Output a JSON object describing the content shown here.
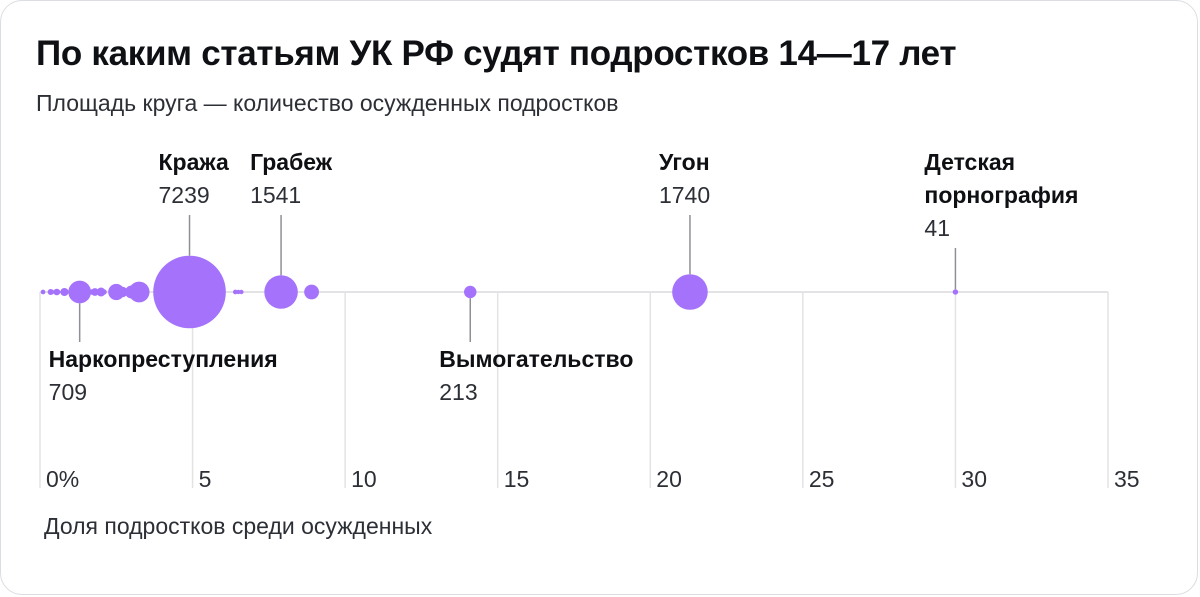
{
  "title": "По каким статьям УК РФ судят подростков 14—17 лет",
  "subtitle": "Площадь круга — количество осужденных подростков",
  "chart_data": {
    "type": "scatter",
    "title": "По каким статьям УК РФ судят подростков 14—17 лет",
    "subtitle": "Площадь круга — количество осужденных подростков",
    "xlabel": "Доля подростков среди осужденных",
    "ylabel": "",
    "xlim": [
      0,
      35
    ],
    "x_ticks": [
      "0%",
      "5",
      "10",
      "15",
      "20",
      "25",
      "30",
      "35"
    ],
    "x_tick_values": [
      0,
      5,
      10,
      15,
      20,
      25,
      30,
      35
    ],
    "grid": true,
    "color": "#a472fb",
    "labeled": [
      {
        "name": "Кража",
        "value": "7239",
        "x": 4.9,
        "count": 7239,
        "label": "above"
      },
      {
        "name": "Грабеж",
        "value": "1541",
        "x": 7.9,
        "count": 1541,
        "label": "above"
      },
      {
        "name": "Угон",
        "value": "1740",
        "x": 21.3,
        "count": 1740,
        "label": "above"
      },
      {
        "name": "Детская порнография",
        "name_lines": [
          "Детская",
          "порнография"
        ],
        "value": "41",
        "x": 30.0,
        "count": 41,
        "label": "above"
      },
      {
        "name": "Наркопреступления",
        "value": "709",
        "x": 1.3,
        "count": 709,
        "label": "below"
      },
      {
        "name": "Вымогательство",
        "value": "213",
        "x": 14.1,
        "count": 213,
        "label": "below"
      }
    ],
    "unlabeled": [
      {
        "x": 0.1,
        "count": 30
      },
      {
        "x": 0.35,
        "count": 50
      },
      {
        "x": 0.4,
        "count": 20
      },
      {
        "x": 0.55,
        "count": 60
      },
      {
        "x": 0.6,
        "count": 25
      },
      {
        "x": 0.8,
        "count": 90
      },
      {
        "x": 0.8,
        "count": 70
      },
      {
        "x": 1.0,
        "count": 35
      },
      {
        "x": 1.4,
        "count": 150
      },
      {
        "x": 1.7,
        "count": 40
      },
      {
        "x": 1.8,
        "count": 80
      },
      {
        "x": 2.0,
        "count": 110
      },
      {
        "x": 2.1,
        "count": 40
      },
      {
        "x": 2.5,
        "count": 360
      },
      {
        "x": 2.7,
        "count": 150
      },
      {
        "x": 3.0,
        "count": 230
      },
      {
        "x": 3.2,
        "count": 110
      },
      {
        "x": 3.25,
        "count": 590
      },
      {
        "x": 6.4,
        "count": 30
      },
      {
        "x": 6.5,
        "count": 18
      },
      {
        "x": 6.6,
        "count": 15
      },
      {
        "x": 8.9,
        "count": 300
      }
    ]
  }
}
